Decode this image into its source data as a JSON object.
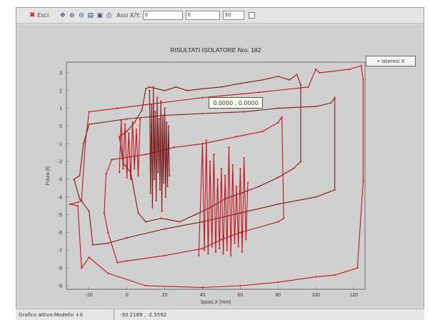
{
  "toolbar": {
    "exit_label": "Esci",
    "icons": [
      "pan-icon",
      "zoom-in-icon",
      "zoom-out-icon",
      "copy-icon",
      "save-icon",
      "print-icon"
    ],
    "axes_label": "Assi X/Y:",
    "field1": "0",
    "field2": "0",
    "field3": "30"
  },
  "legend_button": "• Isteresi X",
  "tooltip": "0.0000 , 0.0000",
  "status": {
    "left": "Grafico attivo:Modello +X",
    "coords": "-30.2189 , -2.5592"
  },
  "chart_data": {
    "type": "line",
    "title": "RISULTATI ISOLATORE Nro: 182",
    "xlabel": "Spost.X (mm)",
    "ylabel": "Forza (t)",
    "xlim": [
      -32,
      126
    ],
    "ylim": [
      -9.2,
      3.6
    ],
    "x_ticks": [
      -20,
      0,
      20,
      40,
      60,
      80,
      100,
      120
    ],
    "y_ticks": [
      3,
      2,
      1,
      0,
      -1,
      -2,
      -3,
      -4,
      -5,
      -6,
      -7,
      -8,
      -9
    ],
    "grid": false,
    "legend": "right",
    "colors": {
      "series": "#c0141c",
      "markers": "#e2231a",
      "background": "#d0d0d0"
    },
    "series": [
      {
        "values": [
          [
            -30,
            -4.4
          ],
          [
            -26,
            -4.3
          ],
          [
            -24,
            -4.2
          ],
          [
            -22,
            -0.9
          ],
          [
            -20,
            0.8
          ],
          [
            -5,
            1.0
          ],
          [
            10,
            1.2
          ],
          [
            40,
            1.6
          ],
          [
            70,
            1.9
          ],
          [
            96,
            2.2
          ],
          [
            100,
            3.2
          ],
          [
            102,
            3.0
          ],
          [
            118,
            3.2
          ],
          [
            124,
            3.4
          ],
          [
            125,
            2.6
          ],
          [
            125,
            -3.1
          ],
          [
            122,
            -8.0
          ],
          [
            110,
            -8.4
          ],
          [
            100,
            -8.5
          ],
          [
            80,
            -8.8
          ],
          [
            60,
            -9.0
          ],
          [
            40,
            -9.1
          ],
          [
            10,
            -9.0
          ],
          [
            -10,
            -8.3
          ],
          [
            -20,
            -7.4
          ],
          [
            -24,
            -8.0
          ],
          [
            -26,
            -4.5
          ],
          [
            -30,
            -4.4
          ]
        ]
      },
      {
        "values": [
          [
            -28,
            -3.0
          ],
          [
            -25,
            -2.8
          ],
          [
            -23,
            -1.0
          ],
          [
            -20,
            0.1
          ],
          [
            0,
            0.4
          ],
          [
            20,
            0.6
          ],
          [
            40,
            0.7
          ],
          [
            62,
            0.8
          ],
          [
            80,
            1.0
          ],
          [
            100,
            1.1
          ],
          [
            108,
            1.3
          ],
          [
            110,
            1.6
          ],
          [
            110,
            -3.6
          ],
          [
            100,
            -4.0
          ],
          [
            80,
            -4.4
          ],
          [
            60,
            -4.9
          ],
          [
            40,
            -5.4
          ],
          [
            20,
            -5.8
          ],
          [
            0,
            -6.3
          ],
          [
            -10,
            -6.6
          ],
          [
            -18,
            -6.7
          ],
          [
            -20,
            -4.8
          ],
          [
            -25,
            -4.1
          ],
          [
            -28,
            -3.0
          ]
        ]
      },
      {
        "values": [
          [
            -12,
            -4.9
          ],
          [
            -11,
            -2.7
          ],
          [
            -8,
            -1.9
          ],
          [
            10,
            -1.6
          ],
          [
            25,
            -1.2
          ],
          [
            40,
            -1.0
          ],
          [
            58,
            -0.6
          ],
          [
            72,
            -0.3
          ],
          [
            80,
            0.2
          ],
          [
            82,
            0.5
          ],
          [
            83,
            -5.2
          ],
          [
            80,
            -5.4
          ],
          [
            60,
            -6.0
          ],
          [
            50,
            -6.4
          ],
          [
            40,
            -6.9
          ],
          [
            20,
            -7.3
          ],
          [
            0,
            -7.6
          ],
          [
            -5,
            -7.7
          ],
          [
            -10,
            -6.0
          ],
          [
            -12,
            -4.9
          ]
        ]
      },
      {
        "values": [
          [
            -4,
            -0.6
          ],
          [
            0,
            -0.3
          ],
          [
            4,
            0.2
          ],
          [
            8,
            0.9
          ],
          [
            10,
            2.1
          ],
          [
            12,
            2.2
          ],
          [
            20,
            2.0
          ],
          [
            26,
            2.2
          ],
          [
            32,
            2.0
          ],
          [
            40,
            2.1
          ],
          [
            50,
            2.2
          ],
          [
            60,
            2.4
          ],
          [
            72,
            2.6
          ],
          [
            80,
            2.8
          ],
          [
            86,
            2.6
          ],
          [
            90,
            2.9
          ],
          [
            92,
            2.3
          ],
          [
            92,
            -2.0
          ],
          [
            88,
            -2.4
          ],
          [
            80,
            -2.9
          ],
          [
            70,
            -3.4
          ],
          [
            60,
            -3.8
          ],
          [
            52,
            -4.1
          ],
          [
            44,
            -4.6
          ],
          [
            36,
            -5.0
          ],
          [
            28,
            -5.4
          ],
          [
            18,
            -5.2
          ],
          [
            10,
            -5.4
          ],
          [
            6,
            -4.9
          ],
          [
            2,
            -2.6
          ],
          [
            -2,
            -2.1
          ],
          [
            -4,
            -0.6
          ]
        ]
      },
      {
        "values": [
          [
            38,
            -7.3
          ],
          [
            40,
            -1.0
          ],
          [
            41,
            -7.0
          ],
          [
            42,
            -0.8
          ],
          [
            43,
            -7.2
          ],
          [
            44,
            -2.0
          ],
          [
            45,
            -6.8
          ],
          [
            46,
            -1.6
          ],
          [
            47,
            -7.1
          ],
          [
            48,
            -3.0
          ],
          [
            49,
            -6.9
          ],
          [
            50,
            -2.4
          ],
          [
            51,
            -7.2
          ],
          [
            52,
            -2.8
          ],
          [
            53,
            -7.0
          ],
          [
            54,
            -1.2
          ],
          [
            55,
            -7.3
          ],
          [
            56,
            -2.2
          ],
          [
            57,
            -6.6
          ],
          [
            58,
            -3.4
          ],
          [
            59,
            -6.8
          ],
          [
            60,
            -2.4
          ],
          [
            61,
            -7.1
          ],
          [
            62,
            -1.8
          ],
          [
            63,
            -6.4
          ],
          [
            64,
            -3.2
          ]
        ]
      },
      {
        "values": [
          [
            12,
            2.0
          ],
          [
            12.5,
            -3.8
          ],
          [
            13,
            1.2
          ],
          [
            13.5,
            -4.6
          ],
          [
            14,
            2.2
          ],
          [
            14.5,
            -3.0
          ],
          [
            15,
            0.8
          ],
          [
            15.5,
            -4.2
          ],
          [
            16,
            1.6
          ],
          [
            16.5,
            -2.6
          ],
          [
            17,
            0.4
          ],
          [
            17.5,
            -3.6
          ],
          [
            18,
            1.4
          ],
          [
            18.5,
            -4.8
          ],
          [
            19,
            0.6
          ],
          [
            19.5,
            -3.2
          ],
          [
            20,
            1.0
          ],
          [
            20.5,
            -4.0
          ],
          [
            21,
            0.2
          ],
          [
            21.5,
            -3.4
          ],
          [
            22,
            0.0
          ],
          [
            22.5,
            -2.8
          ]
        ]
      },
      {
        "values": [
          [
            -4,
            -2.6
          ],
          [
            -3,
            0.3
          ],
          [
            -2,
            -2.4
          ],
          [
            -1,
            0.1
          ],
          [
            0,
            -2.9
          ],
          [
            1,
            -0.4
          ],
          [
            2,
            -3.0
          ],
          [
            3,
            0.2
          ],
          [
            4,
            -2.4
          ],
          [
            5,
            -0.2
          ],
          [
            6,
            -2.8
          ],
          [
            7,
            0.4
          ]
        ]
      }
    ]
  }
}
